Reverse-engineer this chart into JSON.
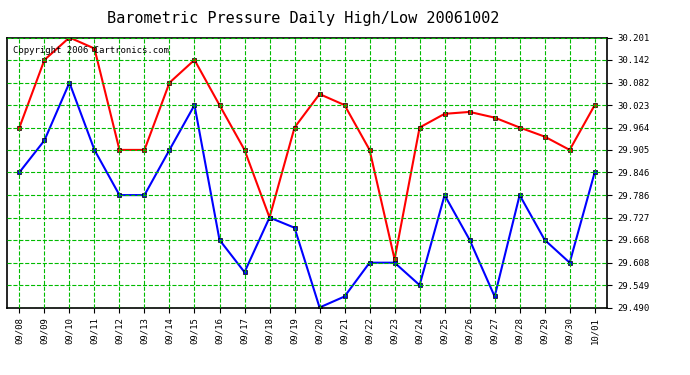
{
  "title": "Barometric Pressure Daily High/Low 20061002",
  "copyright": "Copyright 2006 Cartronics.com",
  "x_labels": [
    "09/08",
    "09/09",
    "09/10",
    "09/11",
    "09/12",
    "09/13",
    "09/14",
    "09/15",
    "09/16",
    "09/17",
    "09/18",
    "09/19",
    "09/20",
    "09/21",
    "09/22",
    "09/23",
    "09/24",
    "09/25",
    "09/26",
    "09/27",
    "09/28",
    "09/29",
    "09/30",
    "10/01"
  ],
  "high_values": [
    29.964,
    30.142,
    30.201,
    30.172,
    29.905,
    29.905,
    30.082,
    30.142,
    30.023,
    29.905,
    29.727,
    29.964,
    30.052,
    30.023,
    29.905,
    29.617,
    29.964,
    30.0,
    30.005,
    29.99,
    29.964,
    29.94,
    29.905,
    30.023
  ],
  "low_values": [
    29.846,
    29.93,
    30.082,
    29.905,
    29.786,
    29.786,
    29.905,
    30.023,
    29.668,
    29.583,
    29.727,
    29.7,
    29.49,
    29.519,
    29.608,
    29.608,
    29.549,
    29.786,
    29.668,
    29.519,
    29.786,
    29.668,
    29.608,
    29.846
  ],
  "high_color": "#ff0000",
  "low_color": "#0000ff",
  "bg_color": "#ffffff",
  "grid_color": "#00bb00",
  "ymin": 29.49,
  "ymax": 30.201,
  "yticks": [
    29.49,
    29.549,
    29.608,
    29.668,
    29.727,
    29.786,
    29.846,
    29.905,
    29.964,
    30.023,
    30.082,
    30.142,
    30.201
  ],
  "title_fontsize": 11,
  "copyright_fontsize": 6.5,
  "marker": "s",
  "markersize": 3,
  "linewidth": 1.5
}
